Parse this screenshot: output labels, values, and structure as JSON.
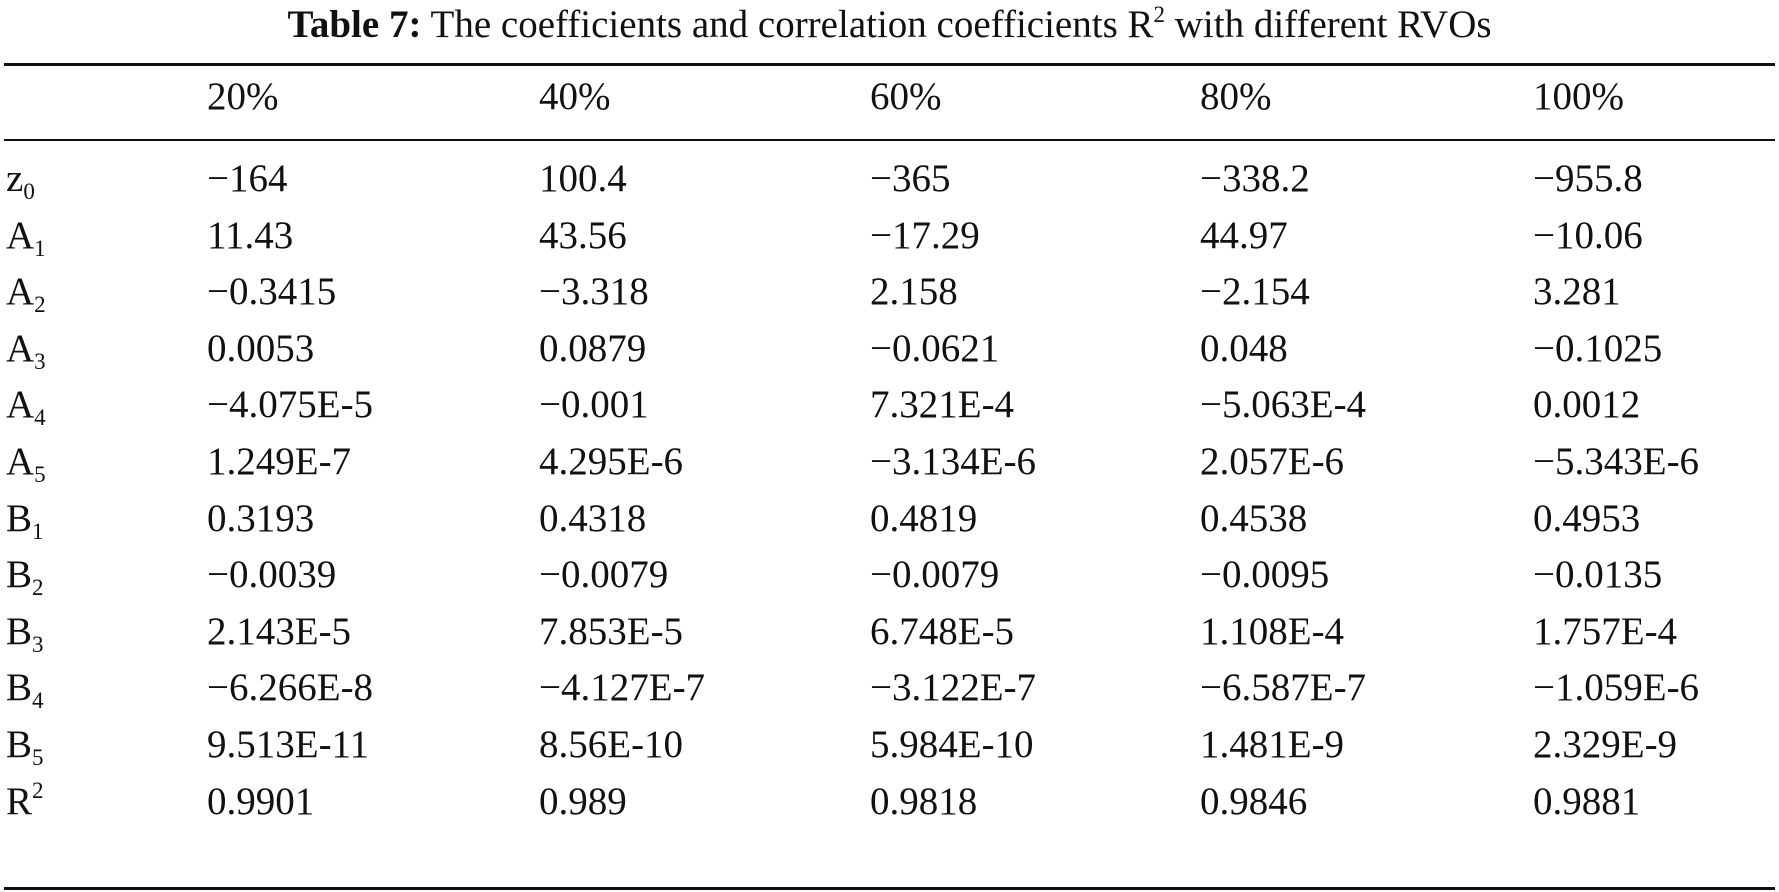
{
  "caption": {
    "label": "Table 7:",
    "text": "The coefficients and correlation coefficients R",
    "sup": "2",
    "tail": "with different RVOs"
  },
  "table": {
    "header": [
      "20%",
      "40%",
      "60%",
      "80%",
      "100%"
    ],
    "rows": [
      {
        "base": "z",
        "sub": "0",
        "sup": "",
        "values": [
          "−164",
          "100.4",
          "−365",
          "−338.2",
          "−955.8"
        ]
      },
      {
        "base": "A",
        "sub": "1",
        "sup": "",
        "values": [
          "11.43",
          "43.56",
          "−17.29",
          "44.97",
          "−10.06"
        ]
      },
      {
        "base": "A",
        "sub": "2",
        "sup": "",
        "values": [
          "−0.3415",
          "−3.318",
          "2.158",
          "−2.154",
          "3.281"
        ]
      },
      {
        "base": "A",
        "sub": "3",
        "sup": "",
        "values": [
          "0.0053",
          "0.0879",
          "−0.0621",
          "0.048",
          "−0.1025"
        ]
      },
      {
        "base": "A",
        "sub": "4",
        "sup": "",
        "values": [
          "−4.075E-5",
          "−0.001",
          "7.321E-4",
          "−5.063E-4",
          "0.0012"
        ]
      },
      {
        "base": "A",
        "sub": "5",
        "sup": "",
        "values": [
          "1.249E-7",
          "4.295E-6",
          "−3.134E-6",
          "2.057E-6",
          "−5.343E-6"
        ]
      },
      {
        "base": "B",
        "sub": "1",
        "sup": "",
        "values": [
          "0.3193",
          "0.4318",
          "0.4819",
          "0.4538",
          "0.4953"
        ]
      },
      {
        "base": "B",
        "sub": "2",
        "sup": "",
        "values": [
          "−0.0039",
          "−0.0079",
          "−0.0079",
          "−0.0095",
          "−0.0135"
        ]
      },
      {
        "base": "B",
        "sub": "3",
        "sup": "",
        "values": [
          "2.143E-5",
          "7.853E-5",
          "6.748E-5",
          "1.108E-4",
          "1.757E-4"
        ]
      },
      {
        "base": "B",
        "sub": "4",
        "sup": "",
        "values": [
          "−6.266E-8",
          "−4.127E-7",
          "−3.122E-7",
          "−6.587E-7",
          "−1.059E-6"
        ]
      },
      {
        "base": "B",
        "sub": "5",
        "sup": "",
        "values": [
          "9.513E-11",
          "8.56E-10",
          "5.984E-10",
          "1.481E-9",
          "2.329E-9"
        ]
      },
      {
        "base": "R",
        "sub": "",
        "sup": "2",
        "values": [
          "0.9901",
          "0.989",
          "0.9818",
          "0.9846",
          "0.9881"
        ]
      }
    ]
  }
}
